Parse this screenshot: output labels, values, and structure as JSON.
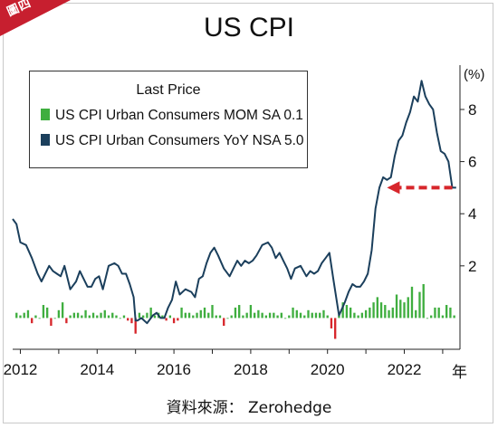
{
  "badge": "圖四",
  "unit": "(%)",
  "year_suffix": "年",
  "source": "資料來源： Zerohedge",
  "colors": {
    "yoy": "#1b3f5c",
    "mom_pos": "#3fae3f",
    "mom_neg": "#d7262b",
    "arrow": "#d7262b",
    "badge": "#c71f2f"
  },
  "chart_data": {
    "type": "line",
    "title": "US CPI",
    "legend": {
      "title": "Last Price",
      "placement": "top-left",
      "entries": [
        {
          "label": "US CPI Urban Consumers MOM SA 0.1",
          "color": "#3fae3f"
        },
        {
          "label": "US CPI Urban Consumers YoY NSA 5.0",
          "color": "#1b3f5c"
        }
      ]
    },
    "x_ticks": [
      "2012",
      "2014",
      "2016",
      "2018",
      "2020",
      "2022"
    ],
    "y_ticks": [
      2,
      4,
      6,
      8
    ],
    "xlim": [
      2011.8,
      2023.45
    ],
    "ylim": [
      -1.2,
      9.7
    ],
    "grid": false,
    "series": [
      {
        "name": "US CPI Urban Consumers YoY NSA",
        "type": "line",
        "x": [
          2011.8,
          2011.9,
          2012.0,
          2012.15,
          2012.3,
          2012.45,
          2012.55,
          2012.65,
          2012.75,
          2012.85,
          2012.95,
          2013.05,
          2013.15,
          2013.3,
          2013.45,
          2013.55,
          2013.65,
          2013.75,
          2013.85,
          2013.95,
          2014.05,
          2014.15,
          2014.3,
          2014.45,
          2014.55,
          2014.65,
          2014.75,
          2014.85,
          2014.95,
          2015.0,
          2015.05,
          2015.15,
          2015.3,
          2015.45,
          2015.55,
          2015.65,
          2015.75,
          2015.85,
          2015.95,
          2016.05,
          2016.15,
          2016.3,
          2016.45,
          2016.55,
          2016.65,
          2016.75,
          2016.85,
          2016.95,
          2017.05,
          2017.15,
          2017.3,
          2017.45,
          2017.55,
          2017.65,
          2017.75,
          2017.85,
          2017.95,
          2018.05,
          2018.15,
          2018.3,
          2018.45,
          2018.55,
          2018.65,
          2018.75,
          2018.85,
          2018.95,
          2019.05,
          2019.15,
          2019.3,
          2019.45,
          2019.55,
          2019.65,
          2019.75,
          2019.85,
          2019.95,
          2020.05,
          2020.15,
          2020.3,
          2020.45,
          2020.55,
          2020.65,
          2020.75,
          2020.85,
          2020.95,
          2021.05,
          2021.15,
          2021.25,
          2021.35,
          2021.45,
          2021.55,
          2021.65,
          2021.75,
          2021.85,
          2021.95,
          2022.05,
          2022.15,
          2022.25,
          2022.35,
          2022.45,
          2022.55,
          2022.65,
          2022.75,
          2022.85,
          2022.95,
          2023.05,
          2023.15,
          2023.25,
          2023.35
        ],
        "y": [
          3.8,
          3.6,
          2.9,
          2.8,
          2.3,
          1.7,
          1.4,
          1.7,
          2.0,
          1.8,
          1.7,
          1.6,
          2.0,
          1.1,
          1.4,
          1.8,
          1.5,
          1.2,
          1.2,
          1.5,
          1.6,
          1.1,
          2.0,
          2.1,
          2.0,
          1.7,
          1.7,
          1.3,
          0.8,
          -0.1,
          -0.1,
          0.0,
          -0.2,
          0.1,
          0.2,
          0.0,
          0.0,
          0.4,
          0.7,
          1.4,
          0.9,
          1.1,
          1.0,
          0.8,
          1.5,
          1.6,
          2.1,
          2.5,
          2.7,
          2.4,
          1.9,
          1.6,
          1.9,
          2.2,
          2.0,
          2.2,
          2.1,
          2.2,
          2.4,
          2.8,
          2.9,
          2.7,
          2.3,
          2.5,
          2.2,
          1.9,
          1.5,
          1.9,
          2.0,
          1.6,
          1.8,
          1.7,
          1.8,
          2.1,
          2.3,
          2.5,
          1.5,
          0.1,
          0.6,
          1.0,
          1.3,
          1.2,
          1.2,
          1.4,
          1.7,
          2.6,
          4.2,
          5.0,
          5.4,
          5.3,
          5.4,
          6.2,
          6.8,
          7.0,
          7.5,
          7.9,
          8.5,
          8.3,
          9.1,
          8.5,
          8.2,
          8.0,
          7.1,
          6.4,
          6.3,
          6.0,
          5.0,
          5.0
        ]
      },
      {
        "name": "US CPI Urban Consumers MOM SA",
        "type": "bar",
        "x": [
          2011.9,
          2012.0,
          2012.1,
          2012.2,
          2012.3,
          2012.4,
          2012.5,
          2012.6,
          2012.7,
          2012.8,
          2012.9,
          2013.0,
          2013.1,
          2013.2,
          2013.3,
          2013.4,
          2013.5,
          2013.6,
          2013.7,
          2013.8,
          2013.9,
          2014.0,
          2014.1,
          2014.2,
          2014.3,
          2014.4,
          2014.5,
          2014.6,
          2014.7,
          2014.8,
          2014.9,
          2015.0,
          2015.1,
          2015.2,
          2015.3,
          2015.4,
          2015.5,
          2015.6,
          2015.7,
          2015.8,
          2015.9,
          2016.0,
          2016.1,
          2016.2,
          2016.3,
          2016.4,
          2016.5,
          2016.6,
          2016.7,
          2016.8,
          2016.9,
          2017.0,
          2017.1,
          2017.2,
          2017.3,
          2017.4,
          2017.5,
          2017.6,
          2017.7,
          2017.8,
          2017.9,
          2018.0,
          2018.1,
          2018.2,
          2018.3,
          2018.4,
          2018.5,
          2018.6,
          2018.7,
          2018.8,
          2018.9,
          2019.0,
          2019.1,
          2019.2,
          2019.3,
          2019.4,
          2019.5,
          2019.6,
          2019.7,
          2019.8,
          2019.9,
          2020.0,
          2020.1,
          2020.2,
          2020.3,
          2020.4,
          2020.5,
          2020.6,
          2020.7,
          2020.8,
          2020.9,
          2021.0,
          2021.1,
          2021.2,
          2021.3,
          2021.4,
          2021.5,
          2021.6,
          2021.7,
          2021.8,
          2021.9,
          2022.0,
          2022.1,
          2022.2,
          2022.3,
          2022.4,
          2022.5,
          2022.6,
          2022.7,
          2022.8,
          2022.9,
          2023.0,
          2023.1,
          2023.2,
          2023.3
        ],
        "y": [
          0.2,
          0.1,
          0.2,
          0.3,
          -0.2,
          0.1,
          0.0,
          0.5,
          0.4,
          -0.3,
          0.0,
          0.3,
          0.6,
          -0.2,
          0.1,
          0.2,
          0.2,
          0.1,
          0.3,
          0.1,
          0.2,
          0.1,
          0.2,
          0.3,
          0.1,
          0.2,
          0.1,
          0.0,
          0.1,
          -0.1,
          -0.2,
          -0.6,
          0.2,
          0.1,
          0.2,
          0.4,
          0.1,
          0.2,
          0.1,
          -0.1,
          0.1,
          -0.2,
          -0.1,
          0.4,
          0.2,
          0.2,
          0.1,
          0.2,
          0.3,
          0.4,
          0.2,
          0.5,
          0.1,
          0.1,
          -0.3,
          0.0,
          0.1,
          0.4,
          0.5,
          0.1,
          0.2,
          0.5,
          0.2,
          0.3,
          0.2,
          0.1,
          0.2,
          0.2,
          0.1,
          0.2,
          0.0,
          0.1,
          0.4,
          0.3,
          0.2,
          0.1,
          0.3,
          0.2,
          0.2,
          0.2,
          0.3,
          0.1,
          -0.4,
          -0.8,
          0.1,
          0.6,
          0.5,
          0.4,
          0.2,
          0.1,
          0.2,
          0.3,
          0.4,
          0.6,
          0.8,
          0.6,
          0.5,
          0.3,
          0.4,
          0.9,
          0.7,
          0.6,
          0.8,
          1.2,
          0.3,
          1.0,
          1.3,
          0.0,
          0.1,
          0.4,
          0.4,
          0.1,
          0.5,
          0.4,
          0.1
        ]
      }
    ],
    "annotations": [
      {
        "type": "arrow",
        "style": "dashed",
        "from": [
          2023.25,
          5.0
        ],
        "to": [
          2021.55,
          5.0
        ]
      }
    ]
  }
}
